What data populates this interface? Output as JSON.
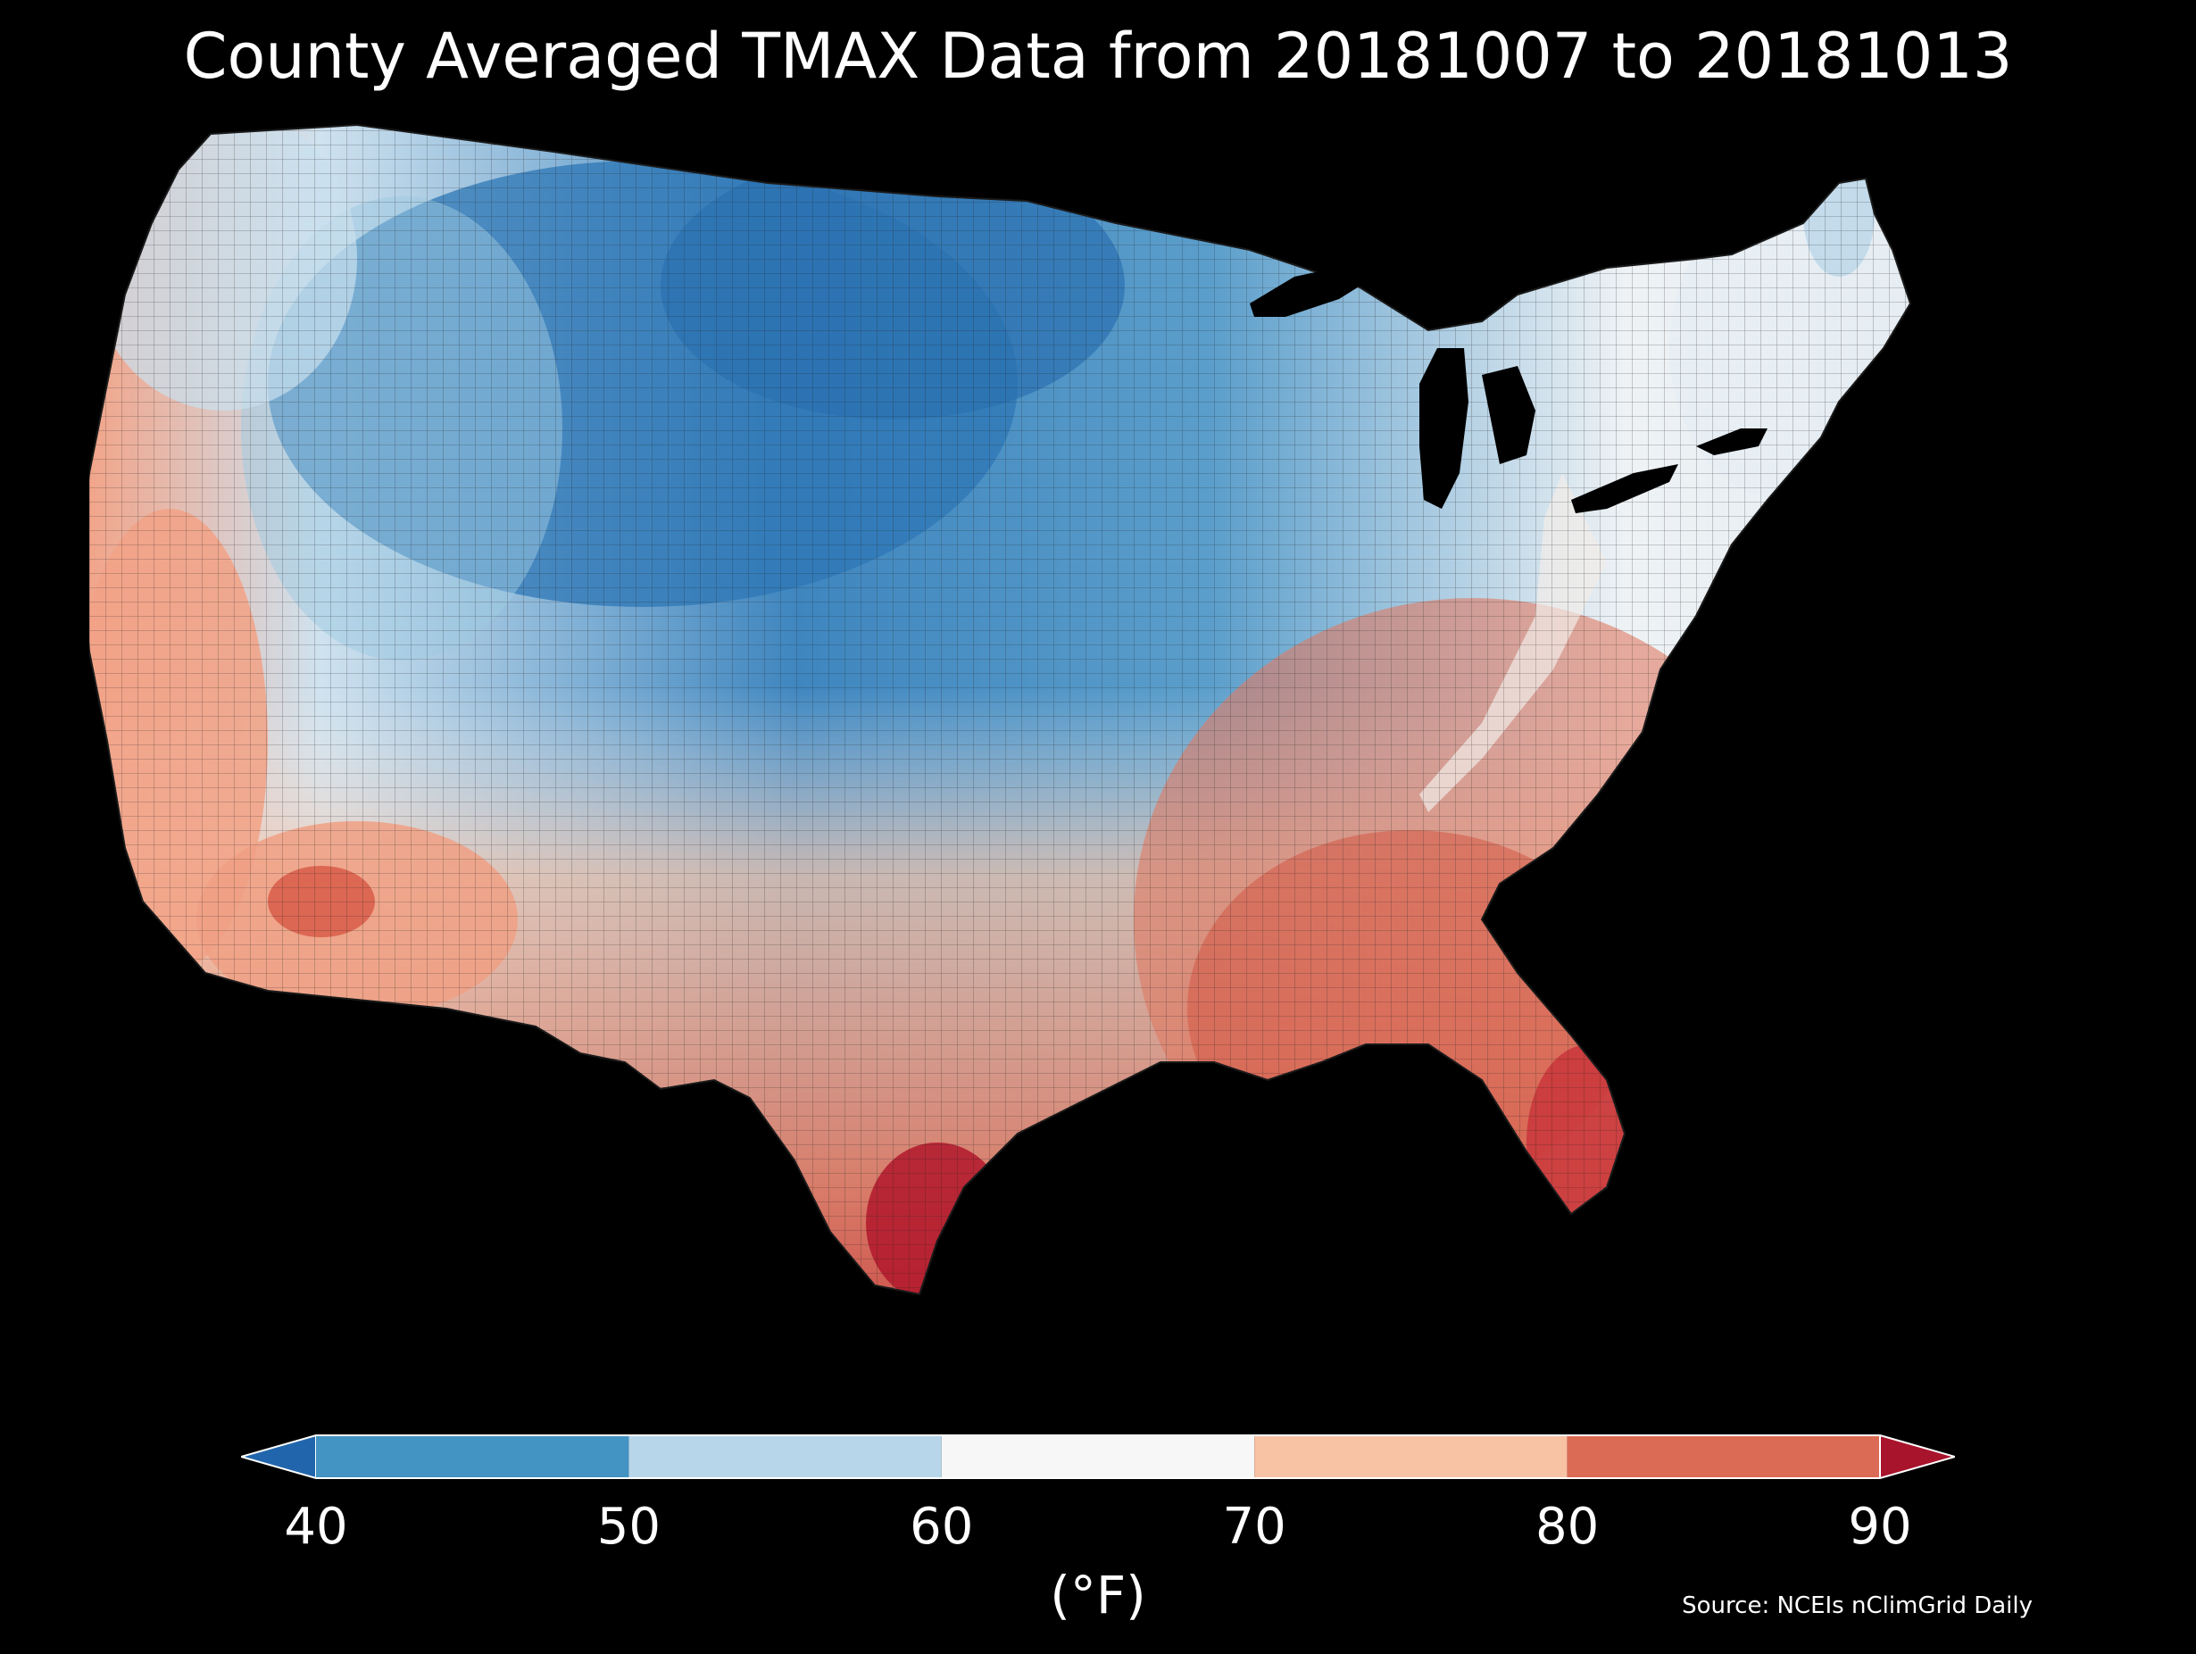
{
  "title": "County Averaged TMAX Data from 20181007 to 20181013",
  "source": "Source: NCEIs nClimGrid Daily",
  "colorbar": {
    "unit": "(°F)",
    "ticks": [
      "40",
      "50",
      "60",
      "70",
      "80",
      "90"
    ],
    "bins": [
      {
        "min": 40,
        "max": 50,
        "color": "#4393c3"
      },
      {
        "min": 50,
        "max": 60,
        "color": "#b8d6ea"
      },
      {
        "min": 60,
        "max": 70,
        "color": "#f7f7f7"
      },
      {
        "min": 70,
        "max": 80,
        "color": "#f8c2a5"
      },
      {
        "min": 80,
        "max": 90,
        "color": "#dc6b55"
      }
    ],
    "under_color": "#2166ac",
    "over_color": "#a8142c"
  },
  "map": {
    "region": "contiguous-united-states",
    "background": "#000000",
    "water_color": "#000000",
    "border_color": "#3a3a3a"
  }
}
